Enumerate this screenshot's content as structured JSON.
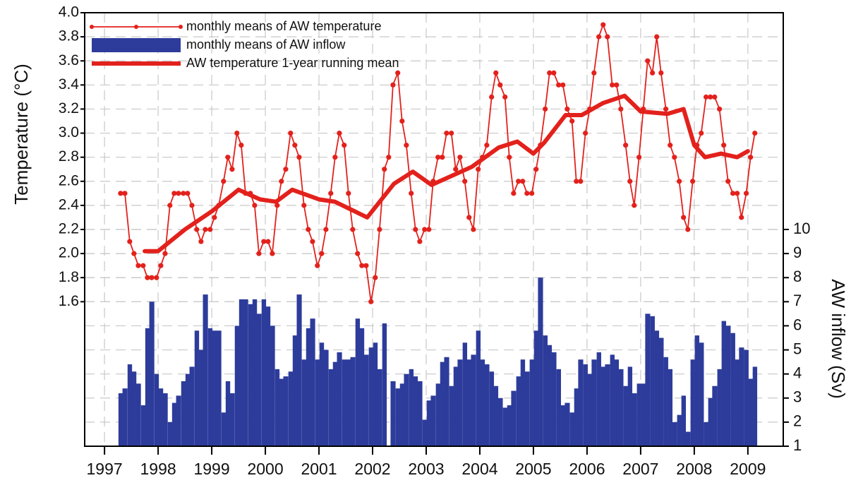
{
  "chart_data": {
    "type": "combo",
    "y_label": "Temperature (°C)",
    "y2_label": "AW inflow (Sv)",
    "xlim": [
      1996.63,
      2009.66
    ],
    "xticks": [
      1997,
      1998,
      1999,
      2000,
      2001,
      2002,
      2003,
      2004,
      2005,
      2006,
      2007,
      2008,
      2009
    ],
    "ylim": [
      0.4,
      4.0
    ],
    "yticks": [
      {
        "value": 1.6,
        "label": "1.6"
      },
      {
        "value": 1.8,
        "label": "1.8"
      },
      {
        "value": 2.0,
        "label": "2.0"
      },
      {
        "value": 2.2,
        "label": "2.2"
      },
      {
        "value": 2.4,
        "label": "2.4"
      },
      {
        "value": 2.6,
        "label": "2.6"
      },
      {
        "value": 2.8,
        "label": "2.8"
      },
      {
        "value": 3.0,
        "label": "3.0"
      },
      {
        "value": 3.2,
        "label": "3.2"
      },
      {
        "value": 3.4,
        "label": "3.4"
      },
      {
        "value": 3.6,
        "label": "3.6"
      },
      {
        "value": 3.8,
        "label": "3.8"
      },
      {
        "value": 4.0,
        "label": "4.0"
      }
    ],
    "y2lim": [
      1,
      19
    ],
    "y2ticks": [
      1,
      2,
      3,
      4,
      5,
      6,
      7,
      8,
      9,
      10
    ],
    "grid": true,
    "legend": "upper left",
    "x": [
      1997.3,
      1997.38,
      1997.47,
      1997.55,
      1997.63,
      1997.72,
      1997.8,
      1997.88,
      1997.97,
      1998.05,
      1998.13,
      1998.22,
      1998.3,
      1998.38,
      1998.47,
      1998.55,
      1998.63,
      1998.72,
      1998.8,
      1998.88,
      1998.97,
      1999.05,
      1999.13,
      1999.22,
      1999.3,
      1999.38,
      1999.47,
      1999.55,
      1999.63,
      1999.72,
      1999.8,
      1999.88,
      1999.97,
      2000.05,
      2000.13,
      2000.22,
      2000.3,
      2000.38,
      2000.47,
      2000.55,
      2000.63,
      2000.72,
      2000.8,
      2000.88,
      2000.97,
      2001.05,
      2001.13,
      2001.22,
      2001.3,
      2001.38,
      2001.47,
      2001.55,
      2001.63,
      2001.72,
      2001.8,
      2001.88,
      2001.97,
      2002.05,
      2002.13,
      2002.22,
      2002.3,
      2002.38,
      2002.47,
      2002.55,
      2002.63,
      2002.72,
      2002.8,
      2002.88,
      2002.97,
      2003.05,
      2003.13,
      2003.22,
      2003.3,
      2003.38,
      2003.47,
      2003.55,
      2003.63,
      2003.72,
      2003.8,
      2003.88,
      2003.97,
      2004.05,
      2004.13,
      2004.22,
      2004.3,
      2004.38,
      2004.47,
      2004.55,
      2004.63,
      2004.72,
      2004.8,
      2004.88,
      2004.97,
      2005.05,
      2005.13,
      2005.22,
      2005.3,
      2005.38,
      2005.47,
      2005.55,
      2005.63,
      2005.72,
      2005.8,
      2005.88,
      2005.97,
      2006.05,
      2006.13,
      2006.22,
      2006.3,
      2006.38,
      2006.47,
      2006.55,
      2006.63,
      2006.72,
      2006.8,
      2006.88,
      2006.97,
      2007.05,
      2007.13,
      2007.22,
      2007.3,
      2007.38,
      2007.47,
      2007.55,
      2007.63,
      2007.72,
      2007.8,
      2007.88,
      2007.97,
      2008.05,
      2008.13,
      2008.22,
      2008.3,
      2008.38,
      2008.47,
      2008.55,
      2008.63,
      2008.72,
      2008.8,
      2008.88,
      2008.97,
      2009.05,
      2009.13
    ],
    "series": [
      {
        "name": "monthly means of AW temperature",
        "type": "line",
        "marker": true,
        "color": "#e3211c",
        "width": 1.8,
        "values": [
          2.5,
          2.5,
          2.1,
          2.0,
          1.9,
          1.9,
          1.8,
          1.8,
          1.8,
          1.9,
          2.0,
          2.4,
          2.5,
          2.5,
          2.5,
          2.5,
          2.4,
          2.2,
          2.1,
          2.2,
          2.2,
          2.3,
          2.4,
          2.6,
          2.8,
          2.7,
          3.0,
          2.9,
          2.5,
          2.5,
          2.4,
          2.0,
          2.1,
          2.1,
          2.0,
          2.4,
          2.6,
          2.7,
          3.0,
          2.9,
          2.8,
          2.4,
          2.2,
          2.1,
          1.9,
          2.0,
          2.2,
          2.5,
          2.8,
          3.0,
          2.9,
          2.5,
          2.2,
          2.0,
          1.9,
          1.9,
          1.6,
          1.8,
          2.2,
          2.7,
          2.8,
          3.4,
          3.5,
          3.1,
          2.9,
          2.5,
          2.2,
          2.1,
          2.2,
          2.2,
          2.6,
          2.8,
          2.8,
          3.0,
          3.0,
          2.7,
          2.8,
          2.6,
          2.3,
          2.2,
          2.7,
          2.8,
          2.9,
          3.3,
          3.5,
          3.4,
          3.3,
          2.8,
          2.5,
          2.6,
          2.6,
          2.5,
          2.5,
          2.7,
          2.9,
          3.2,
          3.5,
          3.5,
          3.4,
          3.4,
          3.2,
          3.1,
          2.6,
          2.6,
          3.0,
          3.2,
          3.5,
          3.8,
          3.9,
          3.8,
          3.4,
          3.4,
          3.2,
          2.9,
          2.6,
          2.4,
          2.8,
          3.2,
          3.6,
          3.5,
          3.8,
          3.5,
          3.2,
          2.9,
          2.8,
          2.6,
          2.3,
          2.2,
          2.6,
          2.9,
          3.0,
          3.3,
          3.3,
          3.3,
          3.2,
          2.9,
          2.6,
          2.5,
          2.5,
          2.3,
          2.5,
          2.8,
          3.0
        ]
      },
      {
        "name": "monthly means of AW inflow",
        "type": "bar",
        "axis": "y2",
        "color": "#2d3c9b",
        "values": [
          3.2,
          3.4,
          4.4,
          4.1,
          3.6,
          2.7,
          5.9,
          7.0,
          4.0,
          3.4,
          3.2,
          2.0,
          2.8,
          3.1,
          3.7,
          4.0,
          4.3,
          5.8,
          5.0,
          7.3,
          5.9,
          5.8,
          5.8,
          2.4,
          3.7,
          3.2,
          6.0,
          7.1,
          7.1,
          6.9,
          7.1,
          6.5,
          7.1,
          6.8,
          6.0,
          4.2,
          3.8,
          3.9,
          4.1,
          5.6,
          7.3,
          4.6,
          5.9,
          6.3,
          4.6,
          5.3,
          5.0,
          4.2,
          4.5,
          4.9,
          4.6,
          4.6,
          4.7,
          6.3,
          5.9,
          4.8,
          5.1,
          5.3,
          4.2,
          6.1,
          null,
          3.7,
          3.4,
          3.6,
          4.0,
          4.2,
          3.9,
          3.7,
          2.1,
          2.9,
          3.1,
          3.6,
          4.5,
          4.7,
          3.5,
          4.3,
          4.6,
          5.3,
          4.6,
          4.8,
          5.8,
          4.6,
          4.4,
          4.1,
          3.5,
          3.0,
          2.6,
          2.7,
          3.3,
          3.9,
          4.6,
          4.1,
          4.6,
          5.8,
          8.0,
          5.6,
          5.2,
          4.9,
          4.2,
          2.7,
          2.8,
          2.4,
          3.4,
          4.6,
          4.4,
          4.0,
          4.6,
          4.9,
          4.3,
          4.4,
          4.8,
          4.6,
          4.2,
          3.5,
          4.3,
          3.2,
          3.6,
          3.6,
          6.5,
          6.4,
          5.8,
          5.5,
          4.7,
          4.2,
          2.0,
          2.3,
          3.1,
          1.6,
          4.6,
          5.6,
          5.3,
          2.0,
          3.0,
          3.5,
          4.2,
          6.2,
          6.0,
          5.7,
          4.6,
          5.1,
          5.0,
          3.8,
          4.3
        ]
      },
      {
        "name": "AW temperature 1-year running mean",
        "type": "line",
        "marker": false,
        "color": "#e3211c",
        "width": 6,
        "x": [
          1997.75,
          1998.0,
          1998.5,
          1999.0,
          1999.5,
          1999.9,
          2000.2,
          2000.5,
          2001.0,
          2001.3,
          2001.9,
          2002.4,
          2002.75,
          2003.1,
          2003.5,
          2003.85,
          2004.35,
          2004.7,
          2005.0,
          2005.2,
          2005.6,
          2005.9,
          2006.3,
          2006.7,
          2007.0,
          2007.5,
          2007.8,
          2008.0,
          2008.2,
          2008.5,
          2008.8,
          2009.0
        ],
        "values": [
          2.02,
          2.02,
          2.2,
          2.35,
          2.53,
          2.45,
          2.43,
          2.53,
          2.45,
          2.43,
          2.3,
          2.58,
          2.68,
          2.57,
          2.65,
          2.72,
          2.88,
          2.93,
          2.83,
          2.92,
          3.15,
          3.15,
          3.25,
          3.31,
          3.18,
          3.16,
          3.2,
          2.9,
          2.8,
          2.83,
          2.8,
          2.85
        ]
      }
    ]
  }
}
